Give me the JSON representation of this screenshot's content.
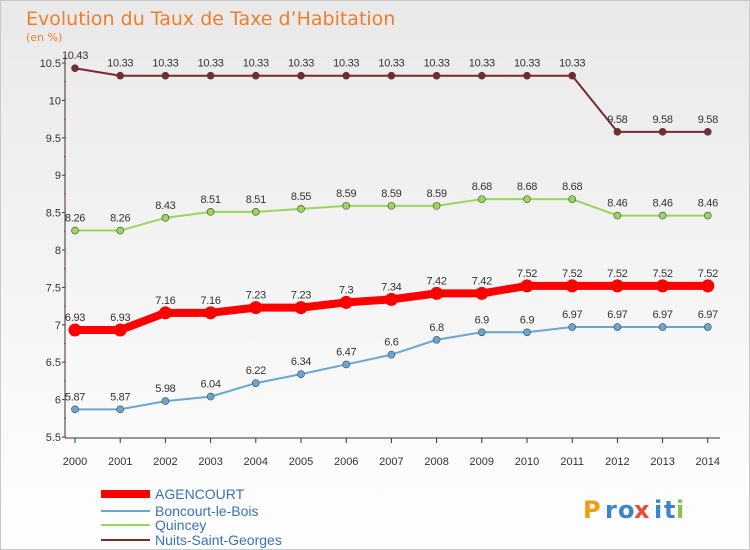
{
  "chart_data": {
    "type": "line",
    "title": "Evolution du Taux de Taxe d’Habitation",
    "subtitle": "(en %)",
    "x": [
      "2000",
      "2001",
      "2002",
      "2003",
      "2004",
      "2005",
      "2006",
      "2007",
      "2008",
      "2009",
      "2010",
      "2011",
      "2012",
      "2013",
      "2014"
    ],
    "ylim": [
      5.5,
      10.5
    ],
    "yticks": [
      "5.5",
      "6",
      "6.5",
      "7",
      "7.5",
      "8",
      "8.5",
      "9",
      "9.5",
      "10",
      "10.5"
    ],
    "grid": false,
    "legend_position": "bottom-left",
    "series": [
      {
        "name": "AGENCOURT",
        "color": "#ff0000",
        "emphasis": true,
        "values": [
          6.93,
          6.93,
          7.16,
          7.16,
          7.23,
          7.23,
          7.3,
          7.34,
          7.42,
          7.42,
          7.52,
          7.52,
          7.52,
          7.52,
          7.52
        ],
        "labels": [
          "6.93",
          "6.93",
          "7.16",
          "7.16",
          "7.23",
          "7.23",
          "7.3",
          "7.34",
          "7.42",
          "7.42",
          "7.52",
          "7.52",
          "7.52",
          "7.52",
          "7.52"
        ]
      },
      {
        "name": "Boncourt-le-Bois",
        "color": "#6aa6d2",
        "emphasis": false,
        "values": [
          5.87,
          5.87,
          5.98,
          6.04,
          6.22,
          6.34,
          6.47,
          6.6,
          6.8,
          6.9,
          6.9,
          6.97,
          6.97,
          6.97,
          6.97
        ],
        "labels": [
          "5.87",
          "5.87",
          "5.98",
          "6.04",
          "6.22",
          "6.34",
          "6.47",
          "6.6",
          "6.8",
          "6.9",
          "6.9",
          "6.97",
          "6.97",
          "6.97",
          "6.97"
        ]
      },
      {
        "name": "Quincey",
        "color": "#99d65c",
        "emphasis": false,
        "values": [
          8.26,
          8.26,
          8.43,
          8.51,
          8.51,
          8.55,
          8.59,
          8.59,
          8.59,
          8.68,
          8.68,
          8.68,
          8.46,
          8.46,
          8.46
        ],
        "labels": [
          "8.26",
          "8.26",
          "8.43",
          "8.51",
          "8.51",
          "8.55",
          "8.59",
          "8.59",
          "8.59",
          "8.68",
          "8.68",
          "8.68",
          "8.46",
          "8.46",
          "8.46"
        ]
      },
      {
        "name": "Nuits-Saint-Georges",
        "color": "#7a2a2a",
        "emphasis": false,
        "values": [
          10.43,
          10.33,
          10.33,
          10.33,
          10.33,
          10.33,
          10.33,
          10.33,
          10.33,
          10.33,
          10.33,
          10.33,
          9.58,
          9.58,
          9.58
        ],
        "labels": [
          "10.43",
          "10.33",
          "10.33",
          "10.33",
          "10.33",
          "10.33",
          "10.33",
          "10.33",
          "10.33",
          "10.33",
          "10.33",
          "10.33",
          "9.58",
          "9.58",
          "9.58"
        ]
      }
    ]
  },
  "brand": {
    "text": "Proxiti",
    "letters": [
      "P",
      "r",
      "o",
      "x",
      "i",
      "t",
      "i"
    ],
    "letter_colors": [
      "#f39c12",
      "#3a86c8",
      "#3a86c8",
      "#e74c3c",
      "#3a86c8",
      "#3a86c8",
      "#8bc34a"
    ]
  }
}
